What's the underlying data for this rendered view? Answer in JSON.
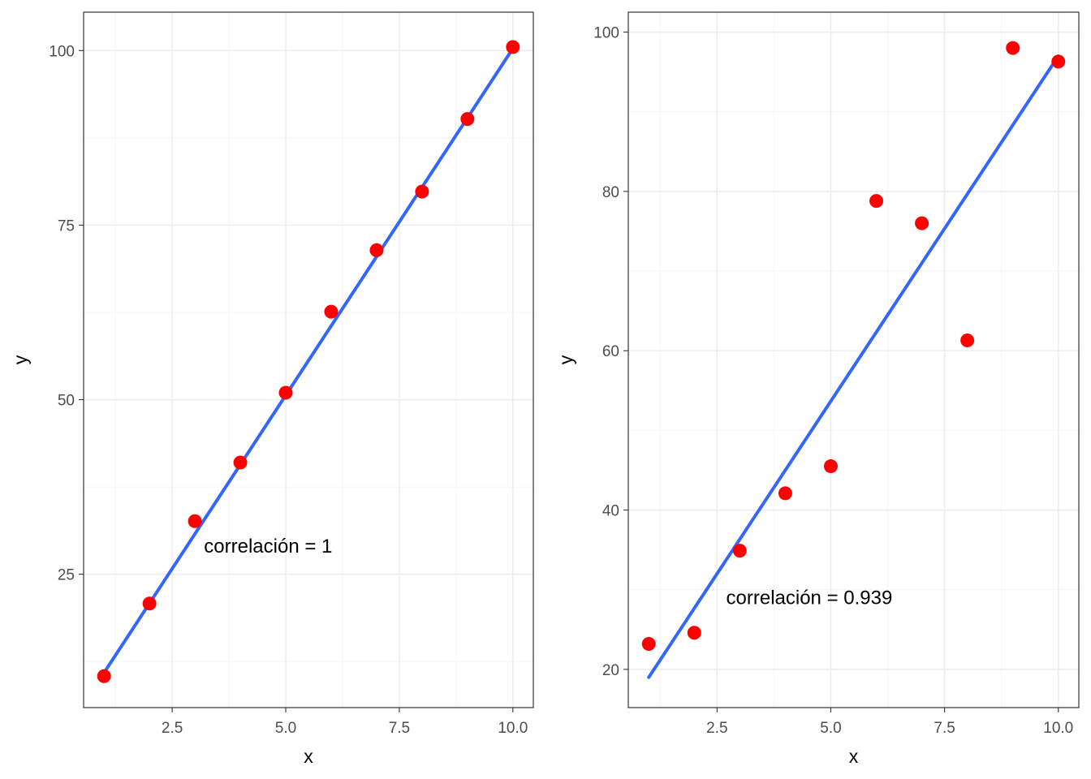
{
  "colors": {
    "point": "#ff0000",
    "line": "#3366ff"
  },
  "chart_data": [
    {
      "type": "scatter",
      "xlabel": "x",
      "ylabel": "y",
      "xlim": [
        0.55,
        10.45
      ],
      "ylim": [
        5.9,
        105.5
      ],
      "x_ticks": [
        2.5,
        5.0,
        7.5,
        10.0
      ],
      "x_tick_labels": [
        "2.5",
        "5.0",
        "7.5",
        "10.0"
      ],
      "y_ticks": [
        25,
        50,
        75,
        100
      ],
      "y_tick_labels": [
        "25",
        "50",
        "75",
        "100"
      ],
      "x": [
        1,
        2,
        3,
        4,
        5,
        6,
        7,
        8,
        9,
        10
      ],
      "y": [
        10.4,
        20.8,
        32.6,
        41.0,
        51.0,
        62.6,
        71.4,
        79.8,
        90.2,
        100.5
      ],
      "fit_line": {
        "x": [
          1,
          10
        ],
        "y": [
          10.9,
          100.3
        ]
      },
      "annotation": {
        "text": "correlación =  1",
        "x": 3.2,
        "y": 29
      }
    },
    {
      "type": "scatter",
      "xlabel": "x",
      "ylabel": "y",
      "xlim": [
        0.55,
        10.45
      ],
      "ylim": [
        15.2,
        102.5
      ],
      "x_ticks": [
        2.5,
        5.0,
        7.5,
        10.0
      ],
      "x_tick_labels": [
        "2.5",
        "5.0",
        "7.5",
        "10.0"
      ],
      "y_ticks": [
        20,
        40,
        60,
        80,
        100
      ],
      "y_tick_labels": [
        "20",
        "40",
        "60",
        "80",
        "100"
      ],
      "x": [
        1,
        2,
        3,
        4,
        5,
        6,
        7,
        8,
        9,
        10
      ],
      "y": [
        23.2,
        24.6,
        34.9,
        42.1,
        45.5,
        78.8,
        76.0,
        61.3,
        98.0,
        96.3
      ],
      "fit_line": {
        "x": [
          1,
          10
        ],
        "y": [
          19.0,
          97.0
        ]
      },
      "annotation": {
        "text": "correlación =  0.939",
        "x": 2.7,
        "y": 29.0
      }
    }
  ]
}
